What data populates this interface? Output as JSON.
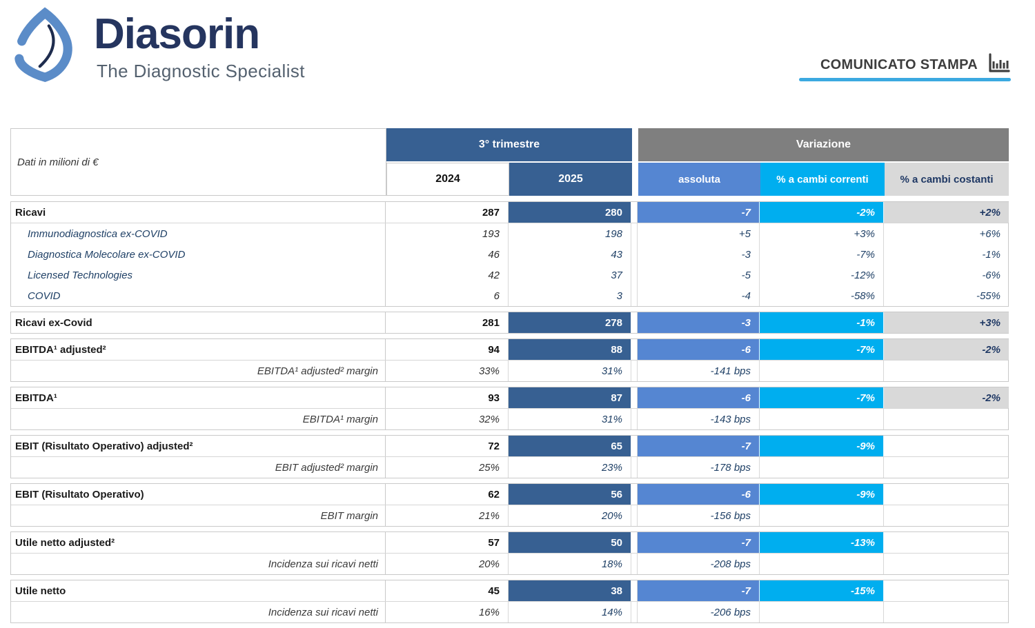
{
  "brand": {
    "name": "Diasorin",
    "tagline": "The Diagnostic Specialist"
  },
  "press_release": {
    "label": "COMUNICATO STAMPA",
    "icon": "bar-chart-icon",
    "underline_color": "#3ba9e0"
  },
  "colors": {
    "steel_blue": "#376092",
    "header_gray": "#7f7f7f",
    "absolute_blue": "#5586d2",
    "current_cyan": "#00aeef",
    "constant_light_gray": "#d9d9d9",
    "navy_text": "#1f3864",
    "logo_blue": "#5b8cc8",
    "brand_navy": "#25355f"
  },
  "table": {
    "unit_note": "Dati in milioni di €",
    "quarter_header": "3° trimestre",
    "variation_header": "Variazione",
    "col_2024": "2024",
    "col_2025": "2025",
    "col_absolute": "assoluta",
    "col_current": "% a cambi correnti",
    "col_constant": "% a cambi costanti",
    "sections": [
      {
        "rows": [
          {
            "type": "main",
            "label": "Ricavi",
            "y2024": "287",
            "y2025": "280",
            "absolute": "-7",
            "current": "-2%",
            "constant": "+2%"
          },
          {
            "type": "sub",
            "label": "Immunodiagnostica ex-COVID",
            "y2024": "193",
            "y2025": "198",
            "absolute": "+5",
            "current": "+3%",
            "constant": "+6%"
          },
          {
            "type": "sub",
            "label": "Diagnostica Molecolare ex-COVID",
            "y2024": "46",
            "y2025": "43",
            "absolute": "-3",
            "current": "-7%",
            "constant": "-1%"
          },
          {
            "type": "sub",
            "label": "Licensed Technologies",
            "y2024": "42",
            "y2025": "37",
            "absolute": "-5",
            "current": "-12%",
            "constant": "-6%"
          },
          {
            "type": "sub",
            "label": "COVID",
            "y2024": "6",
            "y2025": "3",
            "absolute": "-4",
            "current": "-58%",
            "constant": "-55%"
          }
        ]
      },
      {
        "rows": [
          {
            "type": "main",
            "label": "Ricavi ex-Covid",
            "y2024": "281",
            "y2025": "278",
            "absolute": "-3",
            "current": "-1%",
            "constant": "+3%"
          }
        ]
      },
      {
        "rows": [
          {
            "type": "main",
            "label": "EBITDA¹ adjusted²",
            "y2024": "94",
            "y2025": "88",
            "absolute": "-6",
            "current": "-7%",
            "constant": "-2%"
          },
          {
            "type": "margin",
            "label": "EBITDA¹ adjusted² margin",
            "y2024": "33%",
            "y2025": "31%",
            "absolute": "-141 bps",
            "current": "",
            "constant": ""
          }
        ]
      },
      {
        "rows": [
          {
            "type": "main",
            "label": "EBITDA¹",
            "y2024": "93",
            "y2025": "87",
            "absolute": "-6",
            "current": "-7%",
            "constant": "-2%"
          },
          {
            "type": "margin",
            "label": "EBITDA¹ margin",
            "y2024": "32%",
            "y2025": "31%",
            "absolute": "-143 bps",
            "current": "",
            "constant": ""
          }
        ]
      },
      {
        "rows": [
          {
            "type": "main",
            "label": "EBIT (Risultato Operativo) adjusted²",
            "y2024": "72",
            "y2025": "65",
            "absolute": "-7",
            "current": "-9%",
            "constant": ""
          },
          {
            "type": "margin",
            "label": "EBIT adjusted² margin",
            "y2024": "25%",
            "y2025": "23%",
            "absolute": "-178 bps",
            "current": "",
            "constant": ""
          }
        ]
      },
      {
        "rows": [
          {
            "type": "main",
            "label": "EBIT (Risultato Operativo)",
            "y2024": "62",
            "y2025": "56",
            "absolute": "-6",
            "current": "-9%",
            "constant": ""
          },
          {
            "type": "margin",
            "label": "EBIT margin",
            "y2024": "21%",
            "y2025": "20%",
            "absolute": "-156 bps",
            "current": "",
            "constant": ""
          }
        ]
      },
      {
        "rows": [
          {
            "type": "main",
            "label": "Utile netto adjusted²",
            "y2024": "57",
            "y2025": "50",
            "absolute": "-7",
            "current": "-13%",
            "constant": ""
          },
          {
            "type": "margin",
            "label": "Incidenza sui ricavi netti",
            "y2024": "20%",
            "y2025": "18%",
            "absolute": "-208 bps",
            "current": "",
            "constant": ""
          }
        ]
      },
      {
        "rows": [
          {
            "type": "main",
            "label": "Utile netto",
            "y2024": "45",
            "y2025": "38",
            "absolute": "-7",
            "current": "-15%",
            "constant": ""
          },
          {
            "type": "margin",
            "label": "Incidenza sui ricavi netti",
            "y2024": "16%",
            "y2025": "14%",
            "absolute": "-206 bps",
            "current": "",
            "constant": ""
          }
        ]
      }
    ]
  }
}
